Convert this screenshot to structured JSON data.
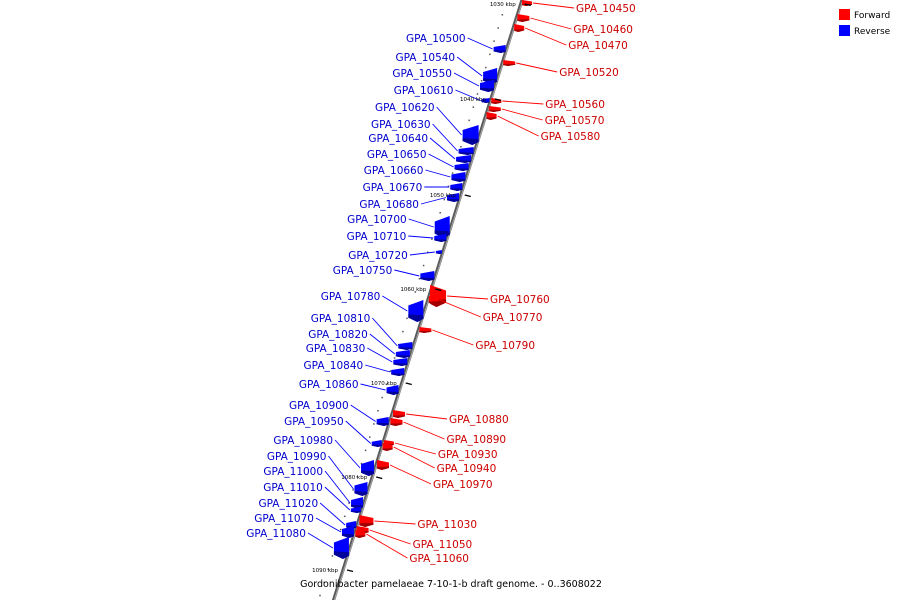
{
  "legend": [
    {
      "label": "Forward",
      "color": "#ff0000"
    },
    {
      "label": "Reverse",
      "color": "#0000ff"
    }
  ],
  "caption": "Gordonibacter pamelaeae 7-10-1-b draft genome. - 0..3608022",
  "colors": {
    "forward": "#ff0000",
    "reverse": "#0000ff",
    "forward_label": "#cc0000",
    "reverse_label": "#0000cc",
    "axis": "#808080"
  },
  "kbp_marks": [
    "1030 kbp",
    "1040 kbp",
    "1050 kbp",
    "1060 kbp",
    "1070 kbp",
    "1080 kbp",
    "1090 kbp"
  ],
  "genes_forward": [
    "GPA_10450",
    "GPA_10460",
    "GPA_10470",
    "GPA_10520",
    "GPA_10560",
    "GPA_10570",
    "GPA_10580",
    "GPA_10760",
    "GPA_10770",
    "GPA_10790",
    "GPA_10880",
    "GPA_10890",
    "GPA_10930",
    "GPA_10940",
    "GPA_10970",
    "GPA_11030",
    "GPA_11050",
    "GPA_11060"
  ],
  "genes_reverse": [
    "GPA_10500",
    "GPA_10540",
    "GPA_10550",
    "GPA_10610",
    "GPA_10620",
    "GPA_10630",
    "GPA_10640",
    "GPA_10650",
    "GPA_10660",
    "GPA_10670",
    "GPA_10680",
    "GPA_10700",
    "GPA_10710",
    "GPA_10720",
    "GPA_10750",
    "GPA_10780",
    "GPA_10810",
    "GPA_10820",
    "GPA_10830",
    "GPA_10840",
    "GPA_10860",
    "GPA_10900",
    "GPA_10950",
    "GPA_10980",
    "GPA_10990",
    "GPA_11000",
    "GPA_11010",
    "GPA_11020",
    "GPA_11070",
    "GPA_11080"
  ]
}
